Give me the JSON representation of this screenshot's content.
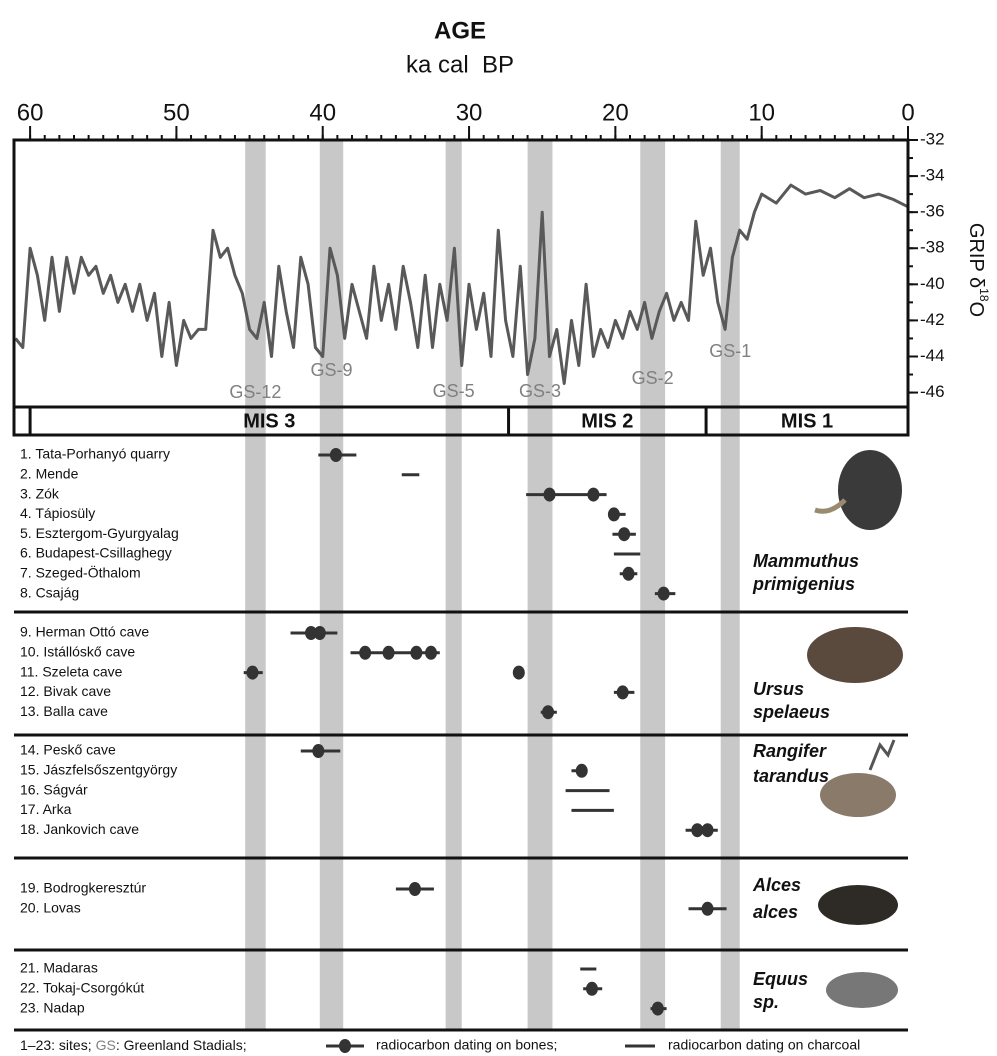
{
  "header": {
    "title": "AGE",
    "subtitle": "ka cal  BP"
  },
  "chart_data": {
    "type": "line",
    "color": "#595959",
    "xlim": [
      61.1,
      0
    ],
    "xticks": [
      60,
      50,
      40,
      30,
      20,
      10,
      0
    ],
    "x_minor_step": 1,
    "ylim": [
      -46.8,
      -32
    ],
    "yticks": [
      -32,
      -34,
      -36,
      -38,
      -40,
      -42,
      -44,
      -46
    ],
    "y_minor_step": 1,
    "y_label": {
      "prefix": "GRIP δ",
      "sup": "18",
      "suffix": "O"
    },
    "x": [
      61,
      60.5,
      60,
      59.5,
      59,
      58.5,
      58,
      57.5,
      57,
      56.5,
      56,
      55.5,
      55,
      54.5,
      54,
      53.5,
      53,
      52.5,
      52,
      51.5,
      51,
      50.5,
      50,
      49.5,
      49,
      48.5,
      48,
      47.5,
      47,
      46.5,
      46,
      45.5,
      45,
      44.5,
      44,
      43.5,
      43,
      42.5,
      42,
      41.5,
      41,
      40.5,
      40,
      39.5,
      39,
      38.5,
      38,
      37.5,
      37,
      36.5,
      36,
      35.5,
      35,
      34.5,
      34,
      33.5,
      33,
      32.5,
      32,
      31.5,
      31,
      30.5,
      30,
      29.5,
      29,
      28.5,
      28,
      27.5,
      27,
      26.5,
      26,
      25.5,
      25,
      24.5,
      24,
      23.5,
      23,
      22.5,
      22,
      21.5,
      21,
      20.5,
      20,
      19.5,
      19,
      18.5,
      18,
      17.5,
      17,
      16.5,
      16,
      15.5,
      15,
      14.5,
      14,
      13.5,
      13,
      12.5,
      12,
      11.5,
      11,
      10.5,
      10,
      9,
      8,
      7,
      6,
      5,
      4,
      3,
      2,
      1,
      0
    ],
    "values": [
      -43,
      -43.5,
      -38,
      -39.5,
      -42,
      -38.5,
      -41.5,
      -38.5,
      -40.5,
      -38.5,
      -39.5,
      -39,
      -40.5,
      -39.5,
      -41,
      -40,
      -41.5,
      -40,
      -42,
      -40.5,
      -44,
      -41,
      -44.5,
      -42,
      -43,
      -42.5,
      -42.5,
      -37,
      -38.5,
      -38,
      -39.5,
      -40.5,
      -42.5,
      -43,
      -41,
      -44,
      -39,
      -41.5,
      -43.5,
      -38.5,
      -40,
      -43.5,
      -44,
      -38,
      -39.5,
      -43,
      -40,
      -41.5,
      -43,
      -39,
      -42,
      -40,
      -42.5,
      -39,
      -41,
      -43.5,
      -39.5,
      -43.5,
      -40,
      -42,
      -38,
      -44.5,
      -40,
      -42.5,
      -40.5,
      -44,
      -37,
      -42,
      -44,
      -39,
      -45,
      -43,
      -36,
      -44,
      -42.5,
      -45.5,
      -42,
      -44.5,
      -40,
      -44,
      -42.5,
      -43.5,
      -42,
      -43,
      -41.5,
      -42.5,
      -41,
      -43,
      -41.5,
      -40.5,
      -42,
      -41,
      -42,
      -36.5,
      -39.5,
      -38,
      -41,
      -42.5,
      -38.5,
      -37,
      -37.5,
      -36,
      -35,
      -35.5,
      -34.5,
      -35,
      -34.8,
      -35.2,
      -34.7,
      -35.2,
      -35,
      -35.3,
      -35.7
    ]
  },
  "stadial_color": "#c8c8c8",
  "stadials": [
    {
      "label": "GS-12",
      "start": 45.3,
      "end": 43.9
    },
    {
      "label": "GS-9",
      "start": 40.2,
      "end": 38.6
    },
    {
      "label": "GS-5",
      "start": 31.6,
      "end": 30.5
    },
    {
      "label": "GS-3",
      "start": 26,
      "end": 24.3
    },
    {
      "label": "GS-2",
      "start": 18.3,
      "end": 16.6
    },
    {
      "label": "GS-1",
      "start": 12.8,
      "end": 11.5
    }
  ],
  "mis": [
    {
      "label": "MIS 3",
      "start": 60,
      "end": 27.3
    },
    {
      "label": "MIS 2",
      "start": 27.3,
      "end": 13.8
    },
    {
      "label": "MIS 1",
      "start": 13.8,
      "end": 0
    }
  ],
  "groups": [
    {
      "species": [
        "Mammuthus",
        "primigenius"
      ],
      "sites": [
        {
          "label": "1. Tata-Porhanyó quarry",
          "bones": [
            39.1
          ],
          "range": [
            40.3,
            37.7
          ]
        },
        {
          "label": "2. Mende",
          "bones": [],
          "range": [
            34.6,
            33.4
          ]
        },
        {
          "label": "3. Zók",
          "bones": [
            24.5,
            21.5
          ],
          "range": [
            26.1,
            20.6
          ]
        },
        {
          "label": "4. Tápiosüly",
          "bones": [
            20.1
          ],
          "range": [
            20.5,
            19.3
          ]
        },
        {
          "label": "5. Esztergom-Gyurgyalag",
          "bones": [
            19.4
          ],
          "range": [
            20.2,
            18.6
          ]
        },
        {
          "label": "6. Budapest-Csillaghegy",
          "bones": [],
          "range": [
            20.1,
            18.3
          ]
        },
        {
          "label": "7. Szeged-Öthalom",
          "bones": [
            19.1
          ],
          "range": [
            19.7,
            18.5
          ]
        },
        {
          "label": "8. Csajág",
          "bones": [
            16.7
          ],
          "range": [
            17.3,
            15.9
          ]
        }
      ]
    },
    {
      "species": [
        "Ursus",
        "spelaeus"
      ],
      "sites": [
        {
          "label": "9. Herman Ottó cave",
          "bones": [
            40.8,
            40.2
          ],
          "range": [
            42.2,
            39
          ]
        },
        {
          "label": "10. Istállóskő cave",
          "bones": [
            37.1,
            35.5,
            33.6,
            32.6
          ],
          "range": [
            38.1,
            32
          ]
        },
        {
          "label": "11. Szeleta cave",
          "bones": [
            44.8,
            26.6
          ],
          "range": [
            45.4,
            44.1
          ]
        },
        {
          "label": "12. Bivak cave",
          "bones": [
            19.5
          ],
          "range": [
            20.1,
            18.7
          ]
        },
        {
          "label": "13. Balla cave",
          "bones": [
            24.6
          ],
          "range": [
            25.1,
            24
          ]
        }
      ]
    },
    {
      "species": [
        "Rangifer",
        "tarandus"
      ],
      "sites": [
        {
          "label": "14. Peskő cave",
          "bones": [
            40.3
          ],
          "range": [
            41.5,
            38.8
          ]
        },
        {
          "label": "15. Jászfelsőszentgyörgy",
          "bones": [
            22.3
          ],
          "range": [
            23,
            21.9
          ]
        },
        {
          "label": "16. Ságvár",
          "bones": [],
          "range": [
            23.4,
            20.4
          ]
        },
        {
          "label": "17. Arka",
          "bones": [],
          "range": [
            23,
            20.1
          ]
        },
        {
          "label": "18. Jankovich cave",
          "bones": [
            14.4,
            13.7
          ],
          "range": [
            15.2,
            13
          ]
        }
      ]
    },
    {
      "species": [
        "Alces",
        "alces"
      ],
      "sites": [
        {
          "label": "19. Bodrogkeresztúr",
          "bones": [
            33.7
          ],
          "range": [
            35,
            32.4
          ]
        },
        {
          "label": "20. Lovas",
          "bones": [
            13.7
          ],
          "range": [
            15,
            12.4
          ]
        }
      ]
    },
    {
      "species": [
        "Equus",
        "sp."
      ],
      "sites": [
        {
          "label": "21. Madaras",
          "bones": [],
          "range": [
            22.4,
            21.3
          ]
        },
        {
          "label": "22. Tokaj-Csorgókút",
          "bones": [
            21.6
          ],
          "range": [
            22.2,
            20.9
          ]
        },
        {
          "label": "23. Nadap",
          "bones": [
            17.1
          ],
          "range": [
            17.6,
            16.5
          ]
        }
      ]
    }
  ],
  "legend": {
    "sites": "1–23: sites;",
    "gs": "GS",
    "gs_text": ": Greenland Stadials;",
    "bones": "radiocarbon dating on bones;",
    "charcoal": "radiocarbon dating on charcoal"
  }
}
